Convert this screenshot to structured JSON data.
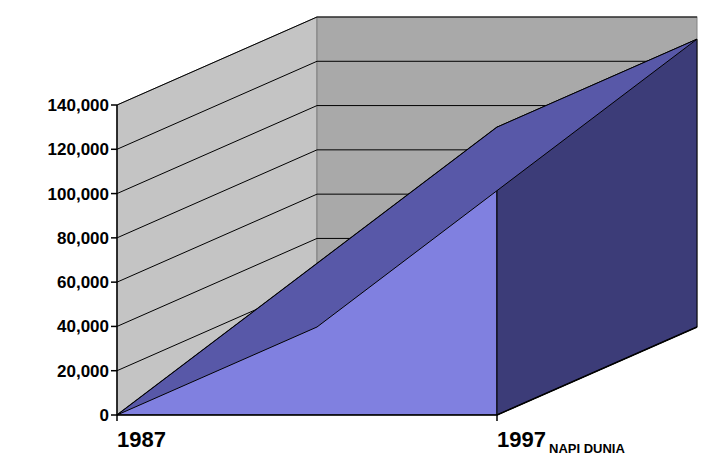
{
  "chart_data": {
    "type": "area",
    "categories": [
      "1987",
      "1997"
    ],
    "series": [
      {
        "name": "NAPI DUNIA",
        "color": "#8080e0",
        "values": [
          0,
          130000
        ]
      }
    ],
    "ylim": [
      0,
      140000
    ],
    "yticks": [
      0,
      {
        "value": 20000,
        "label": "20,000"
      },
      {
        "value": 40000,
        "label": "40,000"
      },
      {
        "value": 60000,
        "label": "60,000"
      },
      {
        "value": 80000,
        "label": "80,000"
      },
      {
        "value": 100000,
        "label": "100,000"
      },
      {
        "value": 120000,
        "label": "120,000"
      },
      {
        "value": 140000,
        "label": "140,000"
      }
    ],
    "grid": true
  }
}
